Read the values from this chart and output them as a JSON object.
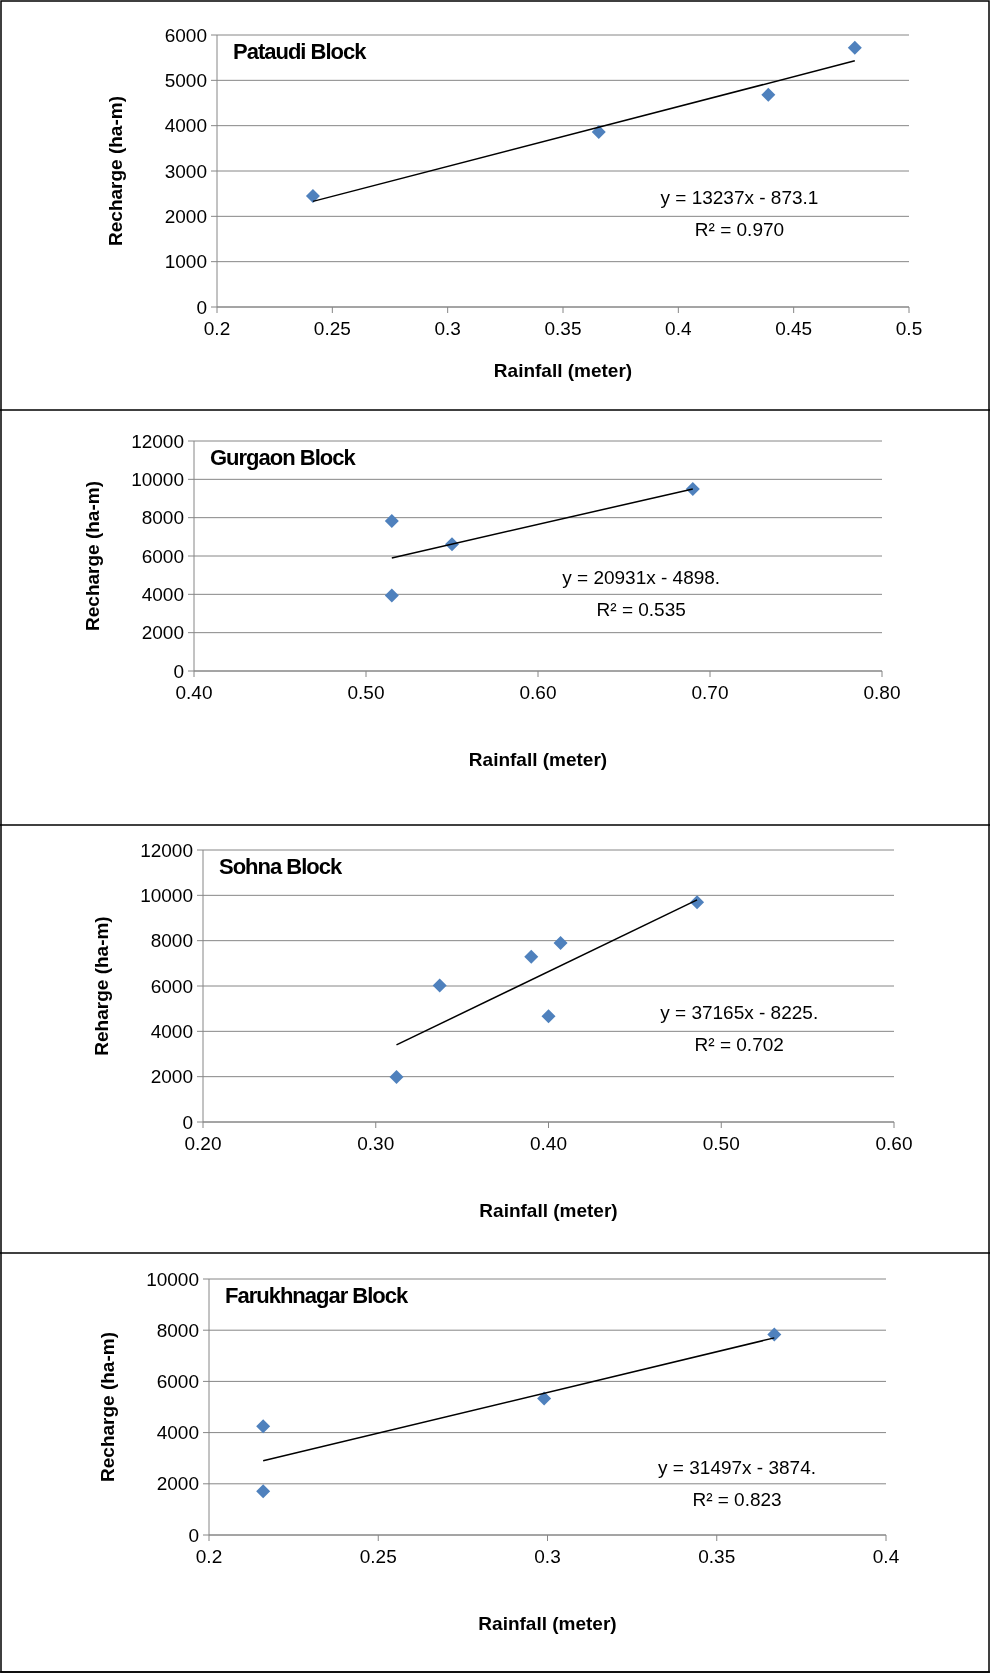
{
  "chart_data": [
    {
      "type": "scatter",
      "title": "Pataudi Block",
      "xlabel": "Rainfall (meter)",
      "ylabel": "Recharge (ha-m)",
      "xlim": [
        0.2,
        0.5
      ],
      "xticks": [
        0.2,
        0.25,
        0.3,
        0.35,
        0.4,
        0.45,
        0.5
      ],
      "ylim": [
        0,
        6000
      ],
      "yticks": [
        0,
        1000,
        2000,
        3000,
        4000,
        5000,
        6000
      ],
      "grid": "y",
      "annotations": [
        "y = 13237x - 873.1",
        "R² = 0.970"
      ],
      "series": [
        {
          "color": "#4f81bd",
          "marker": "diamond",
          "x": [
            0.2416,
            0.3655,
            0.439,
            0.4765
          ],
          "values": [
            2450,
            3860,
            4680,
            5720
          ]
        },
        {
          "type": "line",
          "color": "#000000",
          "x": [
            0.2416,
            0.4765
          ],
          "values": [
            2330,
            5430
          ]
        }
      ]
    },
    {
      "type": "scatter",
      "title": "Gurgaon Block",
      "xlabel": "Rainfall (meter)",
      "ylabel": "Recharge (ha-m)",
      "xlim": [
        0.4,
        0.8
      ],
      "xticks": [
        {
          "value": 0.4,
          "label": "0.40"
        },
        {
          "value": 0.5,
          "label": "0.50"
        },
        {
          "value": 0.6,
          "label": "0.60"
        },
        {
          "value": 0.7,
          "label": "0.70"
        },
        {
          "value": 0.8,
          "label": "0.80"
        }
      ],
      "ylim": [
        0,
        12000
      ],
      "yticks": [
        0,
        2000,
        4000,
        6000,
        8000,
        10000,
        12000
      ],
      "grid": "y",
      "annotations": [
        "y = 20931x - 4898.",
        "R² = 0.535"
      ],
      "series": [
        {
          "color": "#4f81bd",
          "marker": "diamond",
          "x": [
            0.515,
            0.515,
            0.55,
            0.69
          ],
          "values": [
            7830,
            3940,
            6610,
            9500
          ]
        },
        {
          "type": "line",
          "color": "#000000",
          "x": [
            0.515,
            0.69
          ],
          "values": [
            5900,
            9500
          ]
        }
      ]
    },
    {
      "type": "scatter",
      "title": "Sohna Block",
      "xlabel": "Rainfall (meter)",
      "ylabel": "Reharge (ha-m)",
      "xlim": [
        0.2,
        0.6
      ],
      "xticks": [
        {
          "value": 0.2,
          "label": "0.20"
        },
        {
          "value": 0.3,
          "label": "0.30"
        },
        {
          "value": 0.4,
          "label": "0.40"
        },
        {
          "value": 0.5,
          "label": "0.50"
        },
        {
          "value": 0.6,
          "label": "0.60"
        }
      ],
      "ylim": [
        0,
        12000
      ],
      "yticks": [
        0,
        2000,
        4000,
        6000,
        8000,
        10000,
        12000
      ],
      "grid": "y",
      "annotations": [
        "y = 37165x - 8225.",
        "R² = 0.702"
      ],
      "series": [
        {
          "color": "#4f81bd",
          "marker": "diamond",
          "x": [
            0.312,
            0.337,
            0.39,
            0.407,
            0.4,
            0.486
          ],
          "values": [
            1980,
            6020,
            7290,
            7900,
            4660,
            9690
          ]
        },
        {
          "type": "line",
          "color": "#000000",
          "x": [
            0.312,
            0.486
          ],
          "values": [
            3400,
            9800
          ]
        }
      ]
    },
    {
      "type": "scatter",
      "title": "Farukhnagar Block",
      "xlabel": "Rainfall (meter)",
      "ylabel": "Recharge (ha-m)",
      "xlim": [
        0.2,
        0.4
      ],
      "xticks": [
        0.2,
        0.25,
        0.3,
        0.35,
        0.4
      ],
      "ylim": [
        0,
        10000
      ],
      "yticks": [
        0,
        2000,
        4000,
        6000,
        8000,
        10000
      ],
      "grid": "y",
      "annotations": [
        "y = 31497x - 3874.",
        "R² = 0.823"
      ],
      "series": [
        {
          "color": "#4f81bd",
          "marker": "diamond",
          "x": [
            0.216,
            0.216,
            0.299,
            0.367
          ],
          "values": [
            4250,
            1710,
            5330,
            7830
          ]
        },
        {
          "type": "line",
          "color": "#000000",
          "x": [
            0.216,
            0.367
          ],
          "values": [
            2900,
            7700
          ]
        }
      ]
    }
  ]
}
